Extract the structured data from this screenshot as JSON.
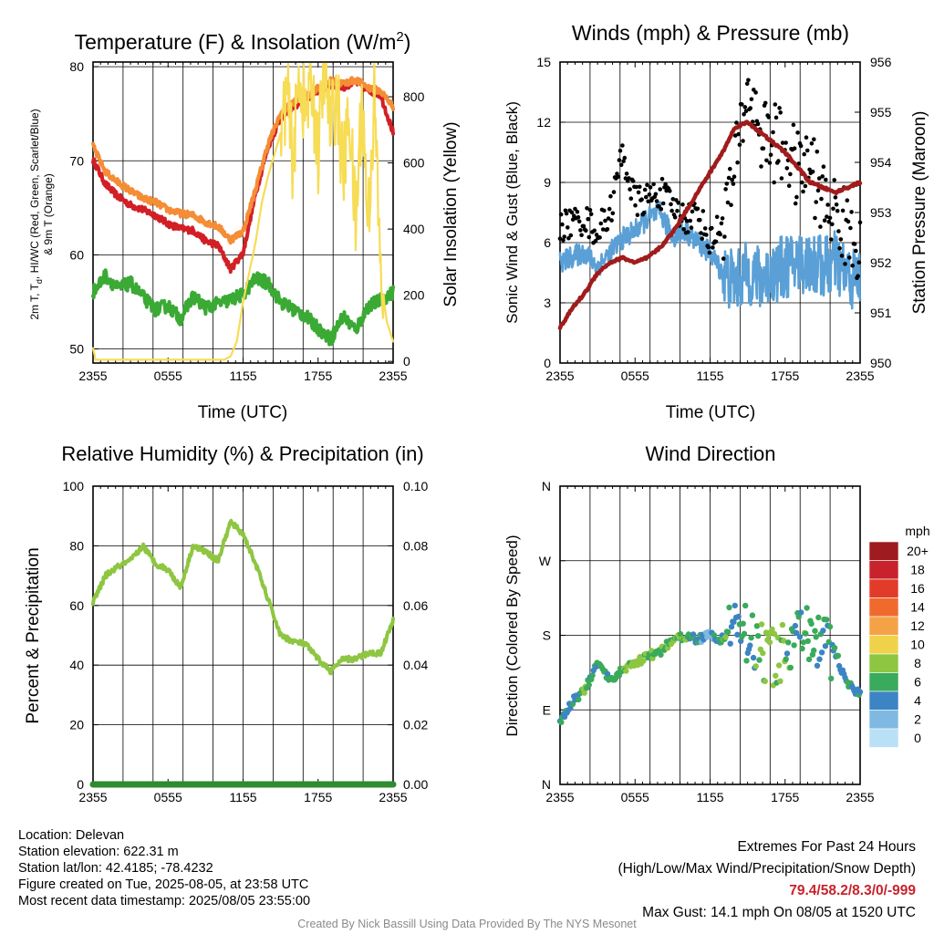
{
  "chart_data": [
    {
      "type": "line",
      "title": "Temperature (F) & Insolation (W/m²)",
      "title_main": "Temperature (F) & Insolation (W/m",
      "title_sup": "2",
      "title_end": ")",
      "xlabel": "Time (UTC)",
      "ylabel_left_line1": "2m T, T",
      "ylabel_left_sub": "d",
      "ylabel_left_rest": ", HI/WC (Red, Green, Scarlet/Blue)",
      "ylabel_left_line2": "& 9m T (Orange)",
      "ylabel_right": "Solar Insolation (Yellow)",
      "x_ticks": [
        "2355",
        "0555",
        "1155",
        "1755",
        "2355"
      ],
      "ylim": [
        48.5,
        80.5
      ],
      "y_ticks": [
        50,
        60,
        70,
        80
      ],
      "y2lim": [
        -5,
        905
      ],
      "y2_ticks": [
        0,
        200,
        400,
        600,
        800
      ],
      "grid": true,
      "series": [
        {
          "name": "2m T",
          "color": "#d21f26",
          "axis": "left",
          "x": [
            0,
            1,
            2,
            3,
            4,
            5,
            6,
            7,
            8,
            9,
            10,
            11,
            12,
            13,
            14,
            15,
            16,
            17,
            18,
            19,
            20,
            21,
            22,
            23,
            24
          ],
          "y": [
            70.1,
            67.5,
            66.2,
            65.3,
            64.8,
            64.2,
            63.3,
            62.8,
            62.6,
            61.5,
            61.0,
            58.5,
            60.2,
            66.5,
            71.5,
            74.5,
            75.8,
            76.3,
            77.5,
            78.0,
            77.8,
            78.4,
            77.5,
            77.0,
            73.0
          ]
        },
        {
          "name": "9m T",
          "color": "#f58c36",
          "axis": "left",
          "x": [
            0,
            1,
            2,
            3,
            4,
            5,
            6,
            7,
            8,
            9,
            10,
            11,
            12,
            13,
            14,
            15,
            16,
            17,
            18,
            19,
            20,
            21,
            22,
            23,
            24
          ],
          "y": [
            71.5,
            68.8,
            67.7,
            66.8,
            66.0,
            65.6,
            64.8,
            64.4,
            64.2,
            63.5,
            63.0,
            61.6,
            62.5,
            67.0,
            71.8,
            75.0,
            76.2,
            76.8,
            77.8,
            78.5,
            78.2,
            78.6,
            77.8,
            77.4,
            75.8
          ]
        },
        {
          "name": "Td",
          "color": "#3aaa35",
          "axis": "left",
          "x": [
            0,
            1,
            2,
            3,
            4,
            5,
            6,
            7,
            8,
            9,
            10,
            11,
            12,
            13,
            14,
            15,
            16,
            17,
            18,
            19,
            20,
            21,
            22,
            23,
            24
          ],
          "y": [
            56.0,
            57.8,
            56.4,
            57.0,
            55.5,
            54.2,
            54.6,
            53.2,
            55.6,
            54.4,
            54.8,
            55.2,
            55.8,
            57.5,
            57.0,
            55.0,
            54.2,
            53.5,
            52.2,
            51.0,
            53.5,
            52.0,
            54.5,
            55.2,
            56.0
          ]
        },
        {
          "name": "Solar Insolation",
          "color": "#f7dc55",
          "axis": "right",
          "x": [
            0,
            0.2,
            1,
            2,
            3,
            4,
            5,
            6,
            7,
            8,
            9,
            10,
            10.5,
            11,
            11.5,
            12,
            13,
            13.5,
            14,
            15,
            15.5,
            16,
            16.5,
            17,
            17.5,
            18,
            18.5,
            19,
            19.5,
            20,
            20.5,
            21,
            21.5,
            22,
            22.5,
            23,
            23.5,
            24
          ],
          "y": [
            40,
            5,
            5,
            5,
            5,
            5,
            5,
            5,
            5,
            5,
            5,
            5,
            5,
            15,
            60,
            180,
            360,
            480,
            560,
            690,
            820,
            600,
            880,
            740,
            850,
            620,
            900,
            700,
            820,
            560,
            760,
            400,
            800,
            420,
            800,
            250,
            120,
            60
          ]
        }
      ]
    },
    {
      "type": "line",
      "title": "Winds (mph) & Pressure (mb)",
      "xlabel": "Time (UTC)",
      "ylabel_left": "Sonic Wind & Gust (Blue, Black)",
      "ylabel_right": "Station Pressure (Maroon)",
      "x_ticks": [
        "2355",
        "0555",
        "1155",
        "1755",
        "2355"
      ],
      "ylim": [
        0,
        15
      ],
      "y_ticks": [
        0,
        3,
        6,
        9,
        12,
        15
      ],
      "y2lim": [
        950,
        956
      ],
      "y2_ticks": [
        950,
        951,
        952,
        953,
        954,
        955,
        956
      ],
      "grid": true,
      "series": [
        {
          "name": "Sonic Wind",
          "color": "#5aa0d6",
          "axis": "left",
          "x": [
            0,
            1,
            2,
            3,
            4,
            5,
            6,
            7,
            8,
            9,
            10,
            11,
            12,
            13,
            14,
            15,
            16,
            17,
            18,
            19,
            20,
            21,
            22,
            23,
            24
          ],
          "y": [
            5.0,
            5.3,
            5.5,
            4.8,
            5.5,
            6.2,
            6.6,
            7.2,
            7.5,
            6.3,
            6.6,
            6.0,
            5.5,
            4.5,
            4.0,
            4.5,
            4.2,
            4.5,
            4.8,
            5.0,
            5.0,
            4.8,
            5.0,
            4.3,
            4.0
          ]
        },
        {
          "name": "Gust",
          "color": "#000000",
          "axis": "left",
          "x": [
            0,
            1,
            2,
            3,
            4,
            5,
            6,
            7,
            8,
            9,
            10,
            11,
            12,
            13,
            14,
            15,
            16,
            17,
            18,
            19,
            20,
            21,
            22,
            23,
            24
          ],
          "y": [
            6.8,
            7.0,
            7.2,
            6.5,
            7.5,
            10.5,
            8.0,
            8.2,
            8.5,
            7.8,
            7.2,
            7.5,
            6.0,
            7.0,
            9.5,
            14.1,
            11.5,
            11.0,
            10.8,
            9.5,
            10.0,
            8.0,
            7.5,
            6.5,
            6.0
          ]
        },
        {
          "name": "Station Pressure",
          "color": "#a01c1c",
          "axis": "right",
          "x": [
            0,
            1,
            2,
            3,
            4,
            5,
            6,
            7,
            8,
            9,
            10,
            11,
            12,
            13,
            14,
            15,
            16,
            17,
            18,
            19,
            20,
            21,
            22,
            23,
            24
          ],
          "y": [
            950.7,
            951.1,
            951.4,
            951.8,
            952.0,
            952.1,
            952.0,
            952.1,
            952.3,
            952.6,
            953.0,
            953.4,
            953.8,
            954.2,
            954.7,
            954.8,
            954.6,
            954.4,
            954.2,
            953.9,
            953.6,
            953.5,
            953.4,
            953.5,
            953.6
          ]
        }
      ]
    },
    {
      "type": "line",
      "title": "Relative Humidity (%) & Precipitation (in)",
      "ylabel_left": "Percent & Precipitation",
      "x_ticks": [
        "2355",
        "0555",
        "1155",
        "1755",
        "2355"
      ],
      "ylim": [
        0,
        100
      ],
      "y_ticks": [
        0,
        20,
        40,
        60,
        80,
        100
      ],
      "y2lim": [
        0,
        0.1
      ],
      "y2_ticks": [
        "0.00",
        "0.02",
        "0.04",
        "0.06",
        "0.08",
        "0.10"
      ],
      "grid": true,
      "series": [
        {
          "name": "Relative Humidity",
          "color": "#8ec641",
          "axis": "left",
          "x": [
            0,
            1,
            2,
            3,
            4,
            5,
            6,
            7,
            8,
            9,
            10,
            11,
            12,
            13,
            14,
            15,
            16,
            17,
            18,
            19,
            20,
            21,
            22,
            23,
            24
          ],
          "y": [
            61,
            70,
            73,
            75,
            80,
            74,
            72,
            66,
            80,
            78,
            75,
            88,
            84,
            74,
            62,
            50,
            48,
            47,
            42,
            38,
            42,
            42,
            44,
            44,
            55
          ]
        },
        {
          "name": "Precipitation",
          "color": "#2e8b2e",
          "axis": "right",
          "x": [
            0,
            24
          ],
          "y": [
            0,
            0
          ]
        }
      ]
    },
    {
      "type": "scatter",
      "title": "Wind Direction",
      "ylabel_left": "Direction (Colored By Speed)",
      "x_ticks": [
        "2355",
        "0555",
        "1155",
        "1755",
        "2355"
      ],
      "ylim": [
        0,
        360
      ],
      "y_tick_labels": [
        "N",
        "E",
        "S",
        "W",
        "N"
      ],
      "grid": true,
      "legend": {
        "title": "mph",
        "labels": [
          "20+",
          "18",
          "16",
          "14",
          "12",
          "10",
          "8",
          "6",
          "4",
          "2",
          "0"
        ],
        "colors": [
          "#9e1b1f",
          "#c8232c",
          "#e23b2a",
          "#f06a2d",
          "#f5a247",
          "#f0d24a",
          "#8ec641",
          "#3aaa5c",
          "#3d84c4",
          "#7fb9e2",
          "#b9e0f6"
        ]
      },
      "series": [
        {
          "name": "Direction",
          "axis": "left",
          "x": [
            0,
            1,
            2,
            3,
            4,
            5,
            6,
            7,
            8,
            9,
            10,
            11,
            12,
            13,
            14,
            15,
            16,
            17,
            18,
            19,
            20,
            21,
            22,
            23,
            24
          ],
          "y": [
            75,
            100,
            115,
            145,
            125,
            140,
            145,
            155,
            160,
            175,
            180,
            175,
            180,
            175,
            190,
            185,
            165,
            150,
            170,
            180,
            175,
            170,
            160,
            120,
            110
          ],
          "speed": [
            4,
            4,
            6,
            4,
            6,
            6,
            8,
            6,
            6,
            6,
            6,
            4,
            2,
            6,
            4,
            4,
            6,
            8,
            6,
            4,
            6,
            4,
            4,
            4,
            4
          ]
        }
      ]
    }
  ],
  "info": {
    "location": "Location: Delevan",
    "elevation": "Station elevation: 622.31 m",
    "latlon": "Station lat/lon: 42.4185; -78.4232",
    "created": "Figure created on Tue, 2025-08-05, at 23:58 UTC",
    "recent": "Most recent data timestamp: 2025/08/05 23:55:00"
  },
  "extremes": {
    "title": "Extremes For Past 24 Hours",
    "subtitle": "(High/Low/Max Wind/Precipitation/Snow Depth)",
    "values": "79.4/58.2/8.3/0/-999",
    "gust": "Max Gust: 14.1 mph On 08/05 at 1520 UTC"
  },
  "credit": "Created By Nick Bassill Using Data Provided By The NYS Mesonet"
}
